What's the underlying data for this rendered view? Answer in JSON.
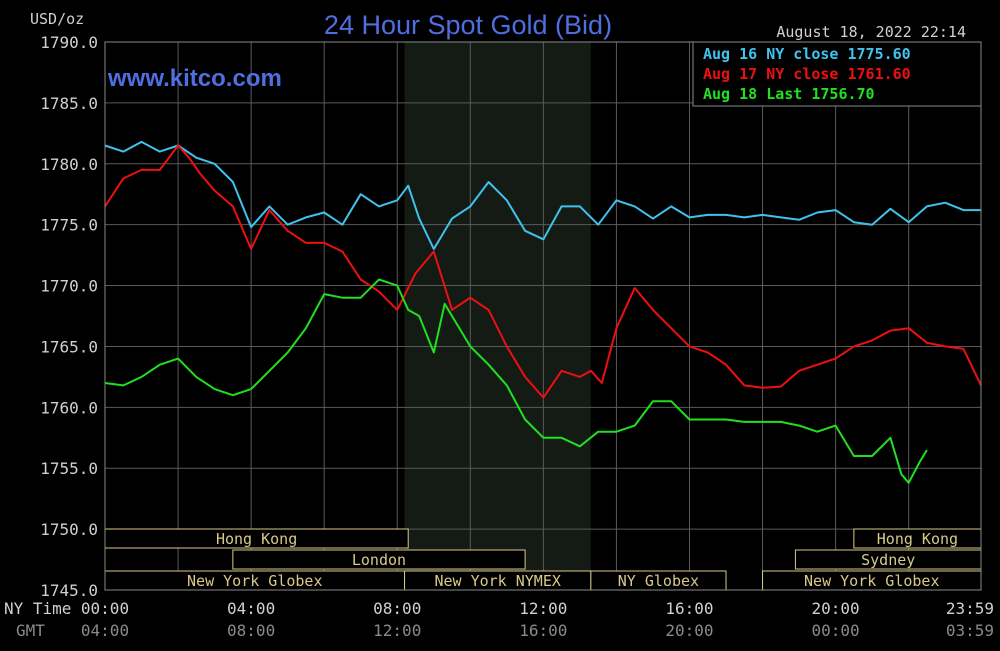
{
  "header": {
    "unit": "USD/oz",
    "title": "24 Hour Spot Gold (Bid)",
    "timestamp": "August 18, 2022 22:14",
    "watermark": "www.kitco.com"
  },
  "axis_row_labels": {
    "ny_time": "NY Time",
    "gmt": "GMT"
  },
  "colors": {
    "aug16": "#3fc3ee",
    "aug17": "#ee1010",
    "aug18": "#20e020",
    "grid": "#5a5a5a",
    "nymex_shade": "#141a14",
    "session": "#d8c98a",
    "title": "#4f6fe0"
  },
  "sessions": [
    {
      "label": "Hong Kong",
      "row": 0,
      "start": 0.0,
      "end": 8.3
    },
    {
      "label": "Hong Kong",
      "row": 0,
      "start": 20.5,
      "end": 23.98
    },
    {
      "label": "London",
      "row": 1,
      "start": 3.5,
      "end": 11.5
    },
    {
      "label": "Sydney",
      "row": 1,
      "start": 18.9,
      "end": 23.98
    },
    {
      "label": "New York Globex",
      "row": 2,
      "start": 0.0,
      "end": 8.2
    },
    {
      "label": "New York NYMEX",
      "row": 2,
      "start": 8.2,
      "end": 13.3
    },
    {
      "label": "NY Globex",
      "row": 2,
      "start": 13.3,
      "end": 17.0
    },
    {
      "label": "New York Globex",
      "row": 2,
      "start": 18.0,
      "end": 23.98
    }
  ],
  "chart_data": {
    "type": "line",
    "title": "24 Hour Spot Gold (Bid)",
    "ylabel": "USD/oz",
    "xlabel": "NY Time",
    "ylim": [
      1745.0,
      1790.0
    ],
    "xlim": [
      0,
      23.98
    ],
    "yticks": [
      "1790.0",
      "1785.0",
      "1780.0",
      "1775.0",
      "1770.0",
      "1765.0",
      "1760.0",
      "1755.0",
      "1750.0",
      "1745.0"
    ],
    "xticks_ny": [
      "00:00",
      "04:00",
      "08:00",
      "12:00",
      "16:00",
      "20:00",
      "23:59"
    ],
    "xticks_gmt": [
      "04:00",
      "08:00",
      "12:00",
      "16:00",
      "20:00",
      "00:00",
      "03:59"
    ],
    "grid": true,
    "legend_position": "top-right",
    "nymex_shaded_hours": [
      8.2,
      13.3
    ],
    "series": [
      {
        "name": "Aug 16 NY close 1775.60",
        "color": "#3fc3ee",
        "x": [
          0,
          0.5,
          1.0,
          1.5,
          2.0,
          2.5,
          3.0,
          3.5,
          4.0,
          4.5,
          5.0,
          5.5,
          6.0,
          6.5,
          7.0,
          7.5,
          8.0,
          8.3,
          8.6,
          9.0,
          9.5,
          10.0,
          10.5,
          11.0,
          11.5,
          12.0,
          12.5,
          13.0,
          13.5,
          14.0,
          14.5,
          15.0,
          15.5,
          16.0,
          16.5,
          17.0,
          17.5,
          18.0,
          18.5,
          19.0,
          19.5,
          20.0,
          20.5,
          21.0,
          21.5,
          22.0,
          22.5,
          23.0,
          23.5,
          23.98
        ],
        "values": [
          1781.5,
          1781.0,
          1781.8,
          1781.0,
          1781.5,
          1780.5,
          1780.0,
          1778.5,
          1774.8,
          1776.5,
          1775.0,
          1775.6,
          1776.0,
          1775.0,
          1777.5,
          1776.5,
          1777.0,
          1778.2,
          1775.5,
          1773.0,
          1775.5,
          1776.5,
          1778.5,
          1777.0,
          1774.5,
          1773.8,
          1776.5,
          1776.5,
          1775.0,
          1777.0,
          1776.5,
          1775.5,
          1776.5,
          1775.6,
          1775.8,
          1775.8,
          1775.6,
          1775.8,
          1775.6,
          1775.4,
          1776.0,
          1776.2,
          1775.2,
          1775.0,
          1776.3,
          1775.2,
          1776.5,
          1776.8,
          1776.2,
          1776.2
        ]
      },
      {
        "name": "Aug 17 NY close 1761.60",
        "color": "#ee1010",
        "x": [
          0,
          0.5,
          1.0,
          1.5,
          2.0,
          2.3,
          2.6,
          3.0,
          3.5,
          4.0,
          4.5,
          5.0,
          5.5,
          6.0,
          6.5,
          7.0,
          7.5,
          8.0,
          8.5,
          9.0,
          9.5,
          10.0,
          10.5,
          11.0,
          11.5,
          12.0,
          12.5,
          13.0,
          13.3,
          13.6,
          14.0,
          14.5,
          15.0,
          15.5,
          16.0,
          16.5,
          17.0,
          17.5,
          18.0,
          18.5,
          19.0,
          19.5,
          20.0,
          20.5,
          21.0,
          21.5,
          22.0,
          22.5,
          23.0,
          23.5,
          23.98
        ],
        "values": [
          1776.5,
          1778.8,
          1779.5,
          1779.5,
          1781.5,
          1780.5,
          1779.2,
          1777.8,
          1776.5,
          1773.0,
          1776.2,
          1774.5,
          1773.5,
          1773.5,
          1772.8,
          1770.5,
          1769.5,
          1768.0,
          1771.0,
          1772.8,
          1768.0,
          1769.0,
          1768.0,
          1765.0,
          1762.5,
          1760.8,
          1763.0,
          1762.5,
          1763.0,
          1762.0,
          1766.5,
          1769.8,
          1768.0,
          1766.5,
          1765.0,
          1764.5,
          1763.5,
          1761.8,
          1761.6,
          1761.7,
          1763.0,
          1763.5,
          1764.0,
          1765.0,
          1765.5,
          1766.3,
          1766.5,
          1765.3,
          1765.0,
          1764.8,
          1761.8
        ]
      },
      {
        "name": "Aug 18 Last 1756.70",
        "color": "#20e020",
        "x": [
          0,
          0.5,
          1.0,
          1.5,
          2.0,
          2.5,
          3.0,
          3.5,
          4.0,
          4.5,
          5.0,
          5.5,
          6.0,
          6.5,
          7.0,
          7.5,
          8.0,
          8.3,
          8.6,
          9.0,
          9.3,
          9.6,
          10.0,
          10.5,
          11.0,
          11.5,
          12.0,
          12.5,
          13.0,
          13.5,
          14.0,
          14.5,
          15.0,
          15.5,
          16.0,
          16.5,
          17.0,
          17.5,
          18.0,
          18.5,
          19.0,
          19.5,
          20.0,
          20.5,
          21.0,
          21.5,
          21.8,
          22.0,
          22.3,
          22.5
        ],
        "values": [
          1762.0,
          1761.8,
          1762.5,
          1763.5,
          1764.0,
          1762.5,
          1761.5,
          1761.0,
          1761.5,
          1763.0,
          1764.5,
          1766.5,
          1769.3,
          1769.0,
          1769.0,
          1770.5,
          1770.0,
          1768.0,
          1767.5,
          1764.5,
          1768.5,
          1767.0,
          1765.0,
          1763.5,
          1761.8,
          1759.0,
          1757.5,
          1757.5,
          1756.8,
          1758.0,
          1758.0,
          1758.5,
          1760.5,
          1760.5,
          1759.0,
          1759.0,
          1759.0,
          1758.8,
          1758.8,
          1758.8,
          1758.5,
          1758.0,
          1758.5,
          1756.0,
          1756.0,
          1757.5,
          1754.5,
          1753.8,
          1755.5,
          1756.5
        ]
      }
    ]
  }
}
